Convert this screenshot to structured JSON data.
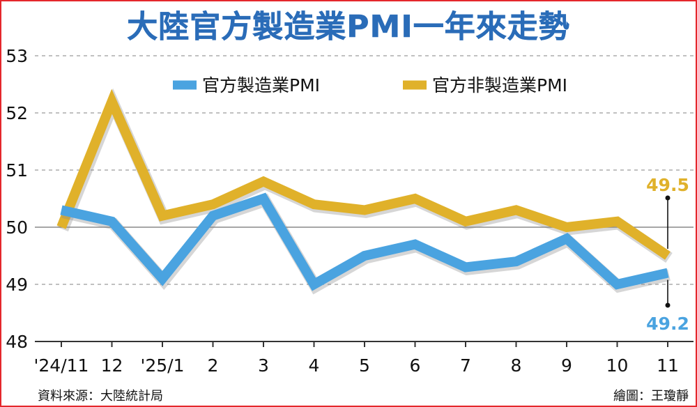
{
  "chart_data": {
    "type": "line",
    "title": "大陸官方製造業PMI一年來走勢",
    "categories": [
      "'24/11",
      "12",
      "'25/1",
      "2",
      "3",
      "4",
      "5",
      "6",
      "7",
      "8",
      "9",
      "10",
      "11"
    ],
    "series": [
      {
        "name": "官方製造業PMI",
        "color": "#4aa3e0",
        "values": [
          50.3,
          50.1,
          49.1,
          50.2,
          50.5,
          49.0,
          49.5,
          49.7,
          49.3,
          49.4,
          49.8,
          49.0,
          49.2
        ]
      },
      {
        "name": "官方非製造業PMI",
        "color": "#e0b12a",
        "values": [
          50.0,
          52.2,
          50.2,
          50.4,
          50.8,
          50.4,
          50.3,
          50.5,
          50.1,
          50.3,
          50.0,
          50.1,
          49.5
        ]
      }
    ],
    "yticks": [
      48,
      49,
      50,
      51,
      52,
      53
    ],
    "ylim": [
      48,
      53
    ],
    "grid": true,
    "legend_position": "top",
    "end_labels": {
      "mfg": "49.2",
      "nonmfg": "49.5"
    }
  },
  "footer": {
    "source": "資料來源：大陸統計局",
    "credit": "繪圖：王瓊靜"
  }
}
